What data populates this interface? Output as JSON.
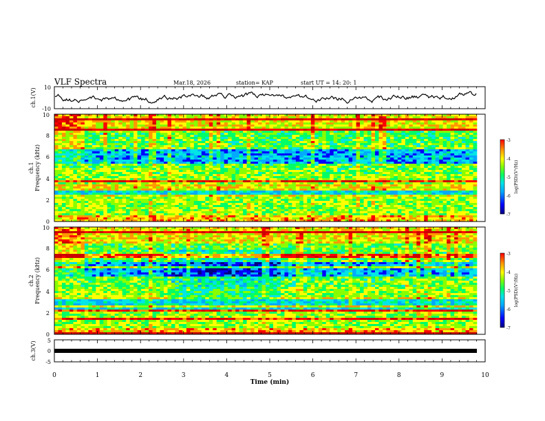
{
  "header": {
    "title": "VLF Spectra",
    "date": "Mar.18, 2026",
    "station": "station= KAP",
    "start": "start  UT =   14: 20: 1"
  },
  "chart_data": [
    {
      "type": "line",
      "name": "ch1-waveform",
      "ylabel": "ch.1(V)",
      "ylim": [
        -10,
        10
      ],
      "ytick_labels": [
        "10",
        "-10"
      ]
    },
    {
      "type": "heatmap",
      "name": "ch1-spectrogram",
      "ylabel": "Frequency (kHz)",
      "channel_label": "ch.1",
      "ylim": [
        0,
        10
      ],
      "ytick_labels": [
        "0",
        "2",
        "4",
        "6",
        "8",
        "10"
      ],
      "colorbar": {
        "label": "log(PSD)(V²/Hz)",
        "range": [
          -7,
          -3
        ],
        "tick_labels": [
          "-3",
          "-4",
          "-5",
          "-6",
          "-7"
        ]
      }
    },
    {
      "type": "heatmap",
      "name": "ch2-spectrogram",
      "ylabel": "Frequency (kHz)",
      "channel_label": "ch.2",
      "ylim": [
        0,
        10
      ],
      "ytick_labels": [
        "0",
        "2",
        "4",
        "6",
        "8",
        "10"
      ],
      "colorbar": {
        "label": "log(PSD)(V²/Hz)",
        "range": [
          -7,
          -3
        ],
        "tick_labels": [
          "-3",
          "-4",
          "-5",
          "-6",
          "-7"
        ]
      }
    },
    {
      "type": "line",
      "name": "ch3-waveform",
      "ylabel": "ch.3(V)",
      "ylim": [
        -5,
        5
      ],
      "ytick_labels": [
        "5",
        "0",
        "-5"
      ]
    }
  ],
  "xaxis": {
    "xlabel": "Time  (min)",
    "xlim": [
      0,
      10
    ],
    "tick_labels": [
      "0",
      "1",
      "2",
      "3",
      "4",
      "5",
      "6",
      "7",
      "8",
      "9",
      "10"
    ]
  },
  "colors": {
    "colormap": [
      "#000080",
      "#0000ff",
      "#00aaff",
      "#00e5e5",
      "#00ff66",
      "#88ff00",
      "#ffff00",
      "#ff9900",
      "#ff0000",
      "#cc0000"
    ]
  }
}
